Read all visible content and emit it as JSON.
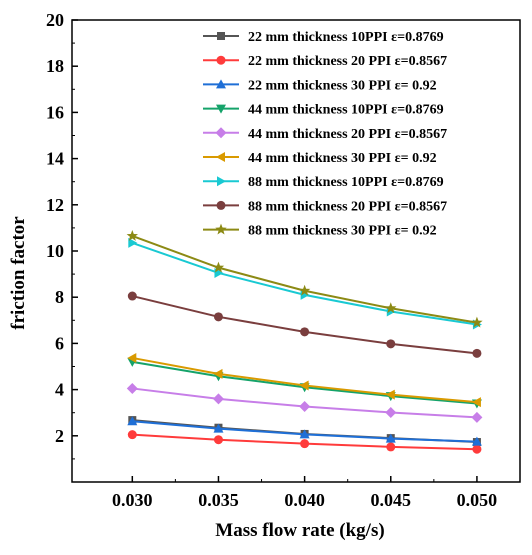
{
  "chart_data": {
    "type": "line",
    "title": "",
    "xlabel": "Mass flow rate (kg/s)",
    "ylabel": "friction factor",
    "x": [
      0.03,
      0.035,
      0.04,
      0.045,
      0.05
    ],
    "x_tick_labels": [
      "0.030",
      "0.035",
      "0.040",
      "0.045",
      "0.050"
    ],
    "xlim": [
      0.0265,
      0.0525
    ],
    "ylim": [
      0,
      20
    ],
    "y_ticks": [
      2,
      4,
      6,
      8,
      10,
      12,
      14,
      16,
      18,
      20
    ],
    "grid": false,
    "legend_position": "top-right",
    "series": [
      {
        "name": "22 mm thickness 10PPI ε=0.8769",
        "color": "#555555",
        "marker": "square",
        "values": [
          2.68,
          2.35,
          2.08,
          1.9,
          1.73
        ]
      },
      {
        "name": "22 mm thickness 20 PPI ε=0.8567",
        "color": "#ff3b3b",
        "marker": "circle",
        "values": [
          2.05,
          1.83,
          1.66,
          1.52,
          1.42
        ]
      },
      {
        "name": "22 mm thickness 30 PPI ε= 0.92",
        "color": "#1f6fd6",
        "marker": "triangle-up",
        "values": [
          2.63,
          2.31,
          2.06,
          1.88,
          1.75
        ]
      },
      {
        "name": "44 mm thickness 10PPI ε=0.8769",
        "color": "#15a36a",
        "marker": "triangle-down",
        "values": [
          5.2,
          4.58,
          4.1,
          3.72,
          3.4
        ]
      },
      {
        "name": "44 mm thickness 20 PPI ε=0.8567",
        "color": "#c77ee8",
        "marker": "diamond",
        "values": [
          4.05,
          3.6,
          3.27,
          3.01,
          2.8
        ]
      },
      {
        "name": "44 mm thickness 30 PPI ε= 0.92",
        "color": "#d99a00",
        "marker": "triangle-left",
        "values": [
          5.37,
          4.68,
          4.18,
          3.78,
          3.46
        ]
      },
      {
        "name": "88 mm thickness 10PPI ε=0.8769",
        "color": "#19c9d2",
        "marker": "triangle-right",
        "values": [
          10.35,
          9.05,
          8.1,
          7.38,
          6.82
        ]
      },
      {
        "name": "88 mm thickness 20 PPI ε=0.8567",
        "color": "#7a3e3e",
        "marker": "circle",
        "values": [
          8.05,
          7.15,
          6.5,
          5.98,
          5.57
        ]
      },
      {
        "name": "88 mm thickness 30 PPI ε= 0.92",
        "color": "#8c8a14",
        "marker": "star",
        "values": [
          10.65,
          9.28,
          8.28,
          7.52,
          6.9
        ]
      }
    ]
  }
}
